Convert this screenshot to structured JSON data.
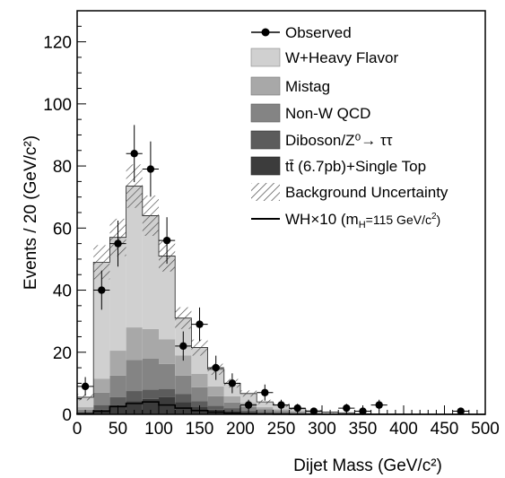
{
  "chart_data": {
    "type": "bar",
    "stacked": true,
    "title": "",
    "xlabel": "Dijet Mass (GeV/c²)",
    "ylabel": "Events / 20 (GeV/c²)",
    "xlim": [
      0,
      500
    ],
    "ylim": [
      0,
      130
    ],
    "bin_width": 20,
    "x_ticks": [
      0,
      50,
      100,
      150,
      200,
      250,
      300,
      350,
      400,
      450,
      500
    ],
    "y_ticks": [
      0,
      20,
      40,
      60,
      80,
      100,
      120
    ],
    "bin_low_edges": [
      0,
      20,
      40,
      60,
      80,
      100,
      120,
      140,
      160,
      180,
      200,
      220,
      240,
      260,
      280,
      300,
      320,
      340,
      360,
      380,
      400,
      420,
      440,
      460,
      480
    ],
    "series": [
      {
        "name": "tt̄ (6.7pb)+Single Top",
        "color": "#3c3c3c",
        "values": [
          0.3,
          1.5,
          3,
          4.2,
          5,
          5.5,
          4,
          2.5,
          1.5,
          1,
          0.6,
          0.4,
          0.3,
          0.2,
          0.1,
          0.1,
          0.05,
          0,
          0,
          0,
          0,
          0,
          0,
          0,
          0
        ]
      },
      {
        "name": "Diboson/Z⁰→ ττ",
        "color": "#5c5c5c",
        "values": [
          0.4,
          1.5,
          2.5,
          3.3,
          3,
          2.7,
          2.5,
          1.7,
          1.3,
          1,
          0.6,
          0.4,
          0.3,
          0.2,
          0.1,
          0.1,
          0.05,
          0.05,
          0,
          0,
          0,
          0,
          0,
          0,
          0
        ]
      },
      {
        "name": "Non-W QCD",
        "color": "#848484",
        "values": [
          0.8,
          4,
          7,
          10,
          10,
          8,
          6,
          4.5,
          3,
          1.8,
          1.2,
          0.8,
          0.5,
          0.3,
          0.2,
          0.1,
          0.1,
          0,
          0,
          0,
          0,
          0,
          0,
          0,
          0
        ]
      },
      {
        "name": "Mistag",
        "color": "#a8a8a8",
        "values": [
          0.8,
          4.5,
          8,
          10.5,
          9.5,
          8,
          6.5,
          4.3,
          3.2,
          2,
          1.3,
          0.7,
          0.5,
          0.3,
          0.2,
          0.1,
          0.1,
          0.05,
          0,
          0,
          0,
          0,
          0,
          0,
          0
        ]
      },
      {
        "name": "W+Heavy Flavor",
        "color": "#d0d0d0",
        "values": [
          3.2,
          37.5,
          36.5,
          45.5,
          36.5,
          26.8,
          12,
          8.5,
          5.5,
          4.2,
          3,
          1.7,
          1.4,
          0.8,
          0.5,
          0.3,
          0.2,
          0.1,
          0.1,
          0.05,
          0.05,
          0,
          0,
          0,
          0
        ]
      }
    ],
    "uncertainty": {
      "name": "Background Uncertainty",
      "values": [
        1,
        5.5,
        6,
        7,
        6.5,
        5,
        3.5,
        2.6,
        1.8,
        1.4,
        1,
        0.7,
        0.6,
        0.4,
        0.3,
        0.2,
        0.1,
        0.1,
        0.1,
        0,
        0,
        0,
        0,
        0,
        0
      ]
    },
    "signal": {
      "name": "WH×10 (m",
      "name_sub": "H",
      "name_rest": "=115 GeV/c",
      "name_sup": "2",
      "name_end": ")",
      "values": [
        0.2,
        1,
        2.5,
        3.5,
        4,
        3,
        2,
        1.2,
        0.7,
        0.4,
        0.2,
        0.1,
        0.05,
        0,
        0,
        0,
        0,
        0,
        0,
        0,
        0,
        0,
        0,
        0,
        0
      ]
    },
    "observed": {
      "name": "Observed",
      "x": [
        10,
        30,
        50,
        70,
        90,
        110,
        130,
        150,
        170,
        190,
        210,
        230,
        250,
        270,
        290,
        330,
        350,
        370,
        470
      ],
      "y": [
        9,
        40,
        55,
        84,
        79,
        56,
        22,
        29,
        15,
        10,
        3,
        7,
        3,
        2,
        1,
        2,
        1,
        3,
        1
      ],
      "yerr": [
        3,
        6.3,
        7.4,
        9.2,
        8.9,
        7.5,
        4.7,
        5.4,
        3.9,
        3.2,
        1.7,
        2.6,
        1.7,
        1.4,
        1,
        1.4,
        1,
        1.7,
        1
      ]
    },
    "legend_position": "top-right",
    "grid": false
  }
}
